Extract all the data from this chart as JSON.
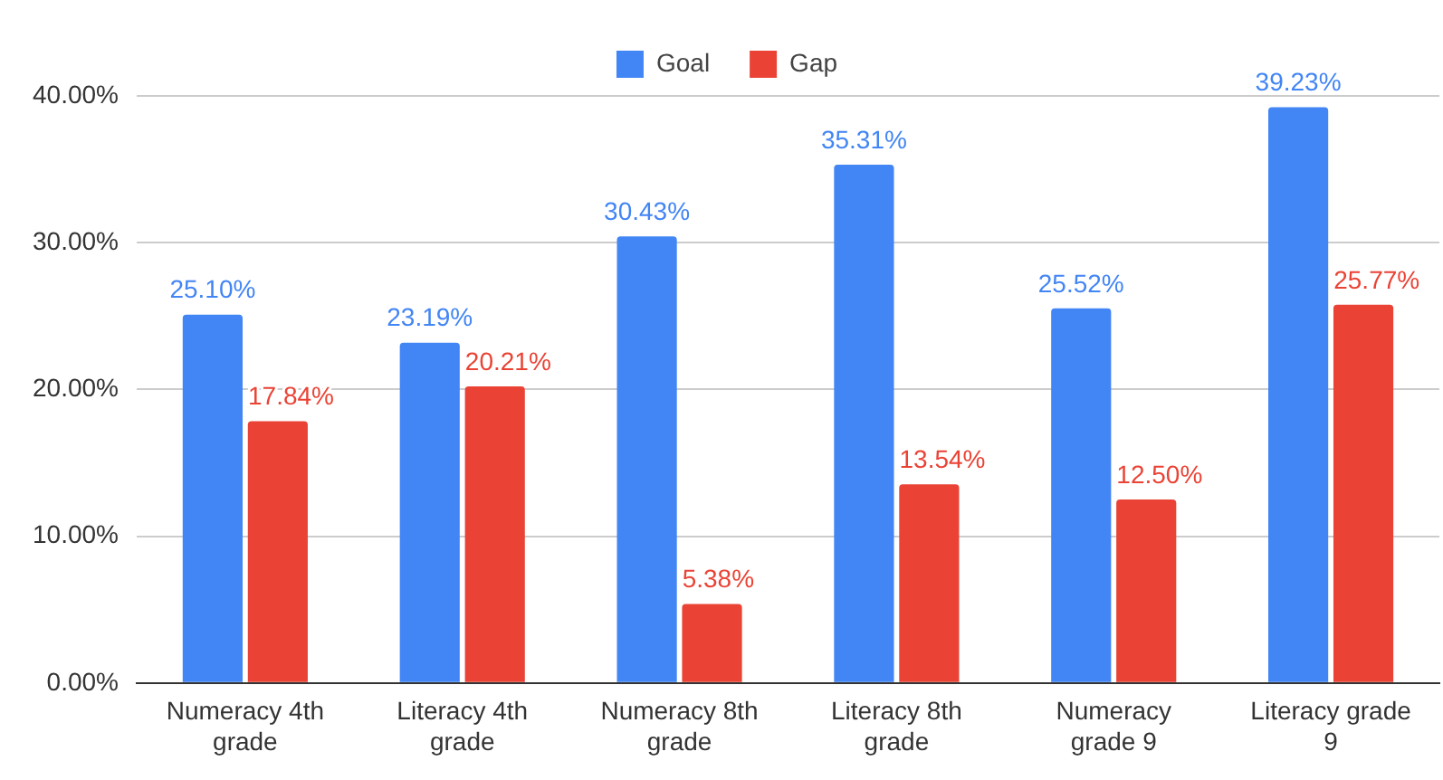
{
  "chart_data": {
    "type": "bar",
    "categories": [
      "Numeracy 4th grade",
      "Literacy 4th grade",
      "Numeracy 8th grade",
      "Literacy 8th grade",
      "Numeracy grade 9",
      "Literacy grade 9"
    ],
    "series": [
      {
        "name": "Goal",
        "color": "#4285f4",
        "values": [
          25.1,
          23.19,
          30.43,
          35.31,
          25.52,
          39.23
        ],
        "value_labels": [
          "25.10%",
          "23.19%",
          "30.43%",
          "35.31%",
          "25.52%",
          "39.23%"
        ]
      },
      {
        "name": "Gap",
        "color": "#ea4335",
        "values": [
          17.84,
          20.21,
          5.38,
          13.54,
          12.5,
          25.77
        ],
        "value_labels": [
          "17.84%",
          "20.21%",
          "5.38%",
          "13.54%",
          "12.50%",
          "25.77%"
        ]
      }
    ],
    "ylim": [
      0,
      40
    ],
    "yticks": [
      {
        "value": 0,
        "label": "0.00%"
      },
      {
        "value": 10,
        "label": "10.00%"
      },
      {
        "value": 20,
        "label": "20.00%"
      },
      {
        "value": 30,
        "label": "30.00%"
      },
      {
        "value": 40,
        "label": "40.00%"
      }
    ],
    "grid": "y",
    "legend": "top"
  }
}
